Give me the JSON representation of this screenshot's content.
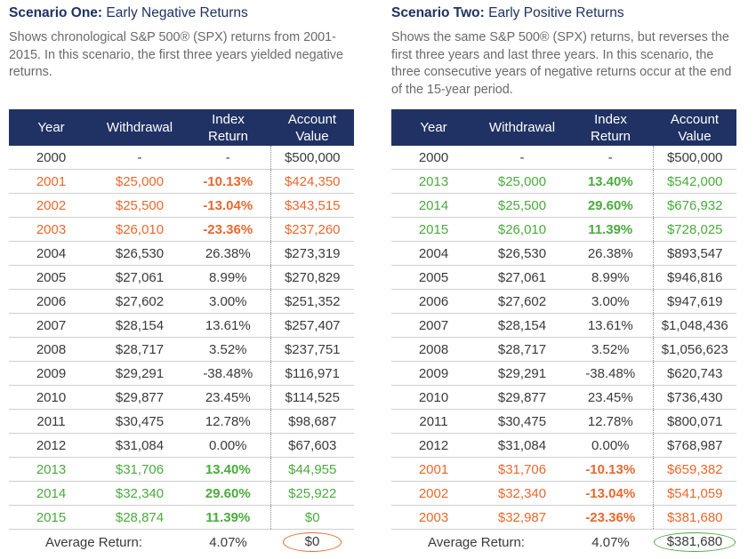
{
  "scenarios": [
    {
      "title_bold": "Scenario One:",
      "title_rest": "Early Negative Returns",
      "description": "Shows chronological S&P 500® (SPX)  returns from 2001-2015. In this scenario, the first three years yielded negative returns.",
      "headers": {
        "year": "Year",
        "withdrawal": "Withdrawal",
        "index_return": "Index Return",
        "account_value": "Account Value"
      },
      "rows": [
        {
          "year": "2000",
          "withdrawal": "-",
          "return": "-",
          "value": "$500,000",
          "style": "normal"
        },
        {
          "year": "2001",
          "withdrawal": "$25,000",
          "return": "-10.13%",
          "value": "$424,350",
          "style": "neg"
        },
        {
          "year": "2002",
          "withdrawal": "$25,500",
          "return": "-13.04%",
          "value": "$343,515",
          "style": "neg"
        },
        {
          "year": "2003",
          "withdrawal": "$26,010",
          "return": "-23.36%",
          "value": "$237,260",
          "style": "neg"
        },
        {
          "year": "2004",
          "withdrawal": "$26,530",
          "return": "26.38%",
          "value": "$273,319",
          "style": "normal"
        },
        {
          "year": "2005",
          "withdrawal": "$27,061",
          "return": "8.99%",
          "value": "$270,829",
          "style": "normal"
        },
        {
          "year": "2006",
          "withdrawal": "$27,602",
          "return": "3.00%",
          "value": "$251,352",
          "style": "normal"
        },
        {
          "year": "2007",
          "withdrawal": "$28,154",
          "return": "13.61%",
          "value": "$257,407",
          "style": "normal"
        },
        {
          "year": "2008",
          "withdrawal": "$28,717",
          "return": "3.52%",
          "value": "$237,751",
          "style": "normal"
        },
        {
          "year": "2009",
          "withdrawal": "$29,291",
          "return": "-38.48%",
          "value": "$116,971",
          "style": "normal"
        },
        {
          "year": "2010",
          "withdrawal": "$29,877",
          "return": "23.45%",
          "value": "$114,525",
          "style": "normal"
        },
        {
          "year": "2011",
          "withdrawal": "$30,475",
          "return": "12.78%",
          "value": "$98,687",
          "style": "normal"
        },
        {
          "year": "2012",
          "withdrawal": "$31,084",
          "return": "0.00%",
          "value": "$67,603",
          "style": "normal"
        },
        {
          "year": "2013",
          "withdrawal": "$31,706",
          "return": "13.40%",
          "value": "$44,955",
          "style": "pos"
        },
        {
          "year": "2014",
          "withdrawal": "$32,340",
          "return": "29.60%",
          "value": "$25,922",
          "style": "pos"
        },
        {
          "year": "2015",
          "withdrawal": "$28,874",
          "return": "11.39%",
          "value": "$0",
          "style": "pos"
        }
      ],
      "average": {
        "label": "Average Return:",
        "return": "4.07%",
        "value": "$0",
        "oval_color": "#e8682d"
      }
    },
    {
      "title_bold": "Scenario Two:",
      "title_rest": "Early Positive Returns",
      "description": "Shows the same S&P 500® (SPX) returns, but reverses the first three years and last three years. In this scenario, the three consecutive years of negative returns occur at the end of the 15-year period.",
      "headers": {
        "year": "Year",
        "withdrawal": "Withdrawal",
        "index_return": "Index Return",
        "account_value": "Account Value"
      },
      "rows": [
        {
          "year": "2000",
          "withdrawal": "-",
          "return": "-",
          "value": "$500,000",
          "style": "normal"
        },
        {
          "year": "2013",
          "withdrawal": "$25,000",
          "return": "13.40%",
          "value": "$542,000",
          "style": "pos"
        },
        {
          "year": "2014",
          "withdrawal": "$25,500",
          "return": "29.60%",
          "value": "$676,932",
          "style": "pos"
        },
        {
          "year": "2015",
          "withdrawal": "$26,010",
          "return": "11.39%",
          "value": "$728,025",
          "style": "pos"
        },
        {
          "year": "2004",
          "withdrawal": "$26,530",
          "return": "26.38%",
          "value": "$893,547",
          "style": "normal"
        },
        {
          "year": "2005",
          "withdrawal": "$27,061",
          "return": "8.99%",
          "value": "$946,816",
          "style": "normal"
        },
        {
          "year": "2006",
          "withdrawal": "$27,602",
          "return": "3.00%",
          "value": "$947,619",
          "style": "normal"
        },
        {
          "year": "2007",
          "withdrawal": "$28,154",
          "return": "13.61%",
          "value": "$1,048,436",
          "style": "normal"
        },
        {
          "year": "2008",
          "withdrawal": "$28,717",
          "return": "3.52%",
          "value": "$1,056,623",
          "style": "normal"
        },
        {
          "year": "2009",
          "withdrawal": "$29,291",
          "return": "-38.48%",
          "value": "$620,743",
          "style": "normal"
        },
        {
          "year": "2010",
          "withdrawal": "$29,877",
          "return": "23.45%",
          "value": "$736,430",
          "style": "normal"
        },
        {
          "year": "2011",
          "withdrawal": "$30,475",
          "return": "12.78%",
          "value": "$800,071",
          "style": "normal"
        },
        {
          "year": "2012",
          "withdrawal": "$31,084",
          "return": "0.00%",
          "value": "$768,987",
          "style": "normal"
        },
        {
          "year": "2001",
          "withdrawal": "$31,706",
          "return": "-10.13%",
          "value": "$659,382",
          "style": "neg"
        },
        {
          "year": "2002",
          "withdrawal": "$32,340",
          "return": "-13.04%",
          "value": "$541,059",
          "style": "neg"
        },
        {
          "year": "2003",
          "withdrawal": "$32,987",
          "return": "-23.36%",
          "value": "$381,680",
          "style": "neg"
        }
      ],
      "average": {
        "label": "Average Return:",
        "return": "4.07%",
        "value": "$381,680",
        "oval_color": "#4aab3c"
      }
    }
  ]
}
